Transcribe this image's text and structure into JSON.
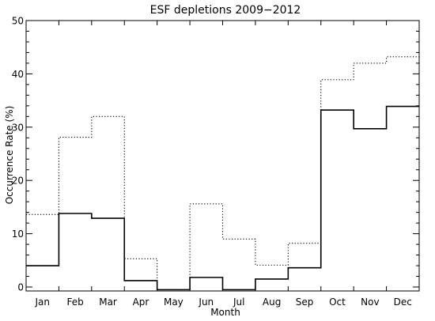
{
  "chart_data": {
    "type": "line",
    "step": true,
    "title": "ESF depletions 2009−2012",
    "xlabel": "Month",
    "ylabel": "Occurrence Rate (%)",
    "ylim": [
      0,
      50
    ],
    "yticks": [
      0,
      10,
      20,
      30,
      40,
      50
    ],
    "grid": false,
    "categories": [
      "Jan",
      "Feb",
      "Mar",
      "Apr",
      "May",
      "Jun",
      "Jul",
      "Aug",
      "Sep",
      "Oct",
      "Nov",
      "Dec"
    ],
    "series": [
      {
        "style": "solid",
        "values": [
          4.0,
          13.8,
          12.9,
          1.2,
          -0.5,
          1.8,
          -0.5,
          1.5,
          3.6,
          33.2,
          29.7,
          33.9
        ]
      },
      {
        "style": "dotted",
        "values": [
          13.6,
          28.1,
          32.0,
          5.3,
          -0.5,
          15.6,
          9.0,
          4.1,
          8.2,
          38.9,
          42.0,
          43.2
        ]
      }
    ]
  }
}
